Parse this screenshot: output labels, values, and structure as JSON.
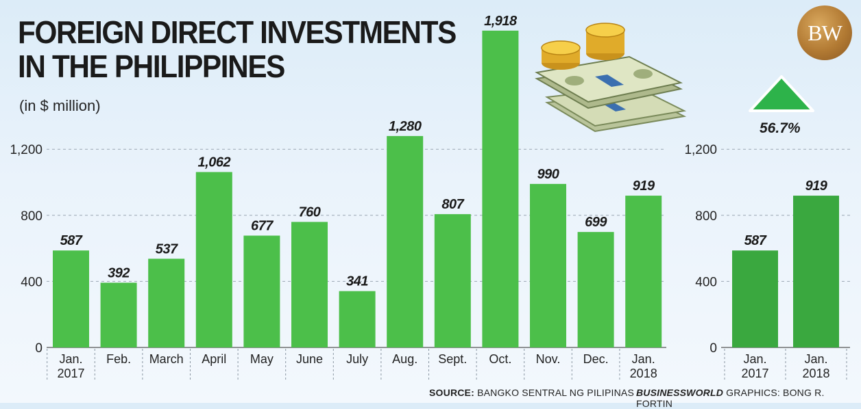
{
  "title_line1": "FOREIGN DIRECT INVESTMENTS",
  "title_line2": "IN THE PHILIPPINES",
  "subtitle": "(in $ million)",
  "logo_text": "BW",
  "change_label": "56.7%",
  "source_label": "SOURCE:",
  "source_text": "BANGKO SENTRAL NG PILIPINAS",
  "graphics_label": "BUSINESSWORLD",
  "graphics_text": "GRAPHICS: BONG R. FORTIN",
  "colors": {
    "bar": "#4cbf4a",
    "bar_dark": "#3aa83f",
    "arrow": "#2db34a"
  },
  "icons": [
    "money-stack-icon",
    "gold-coins-icon",
    "up-arrow-icon"
  ],
  "chart_data": [
    {
      "type": "bar",
      "categories": [
        [
          "Jan.",
          "2017"
        ],
        [
          "Feb."
        ],
        [
          "March"
        ],
        [
          "April"
        ],
        [
          "May"
        ],
        [
          "June"
        ],
        [
          "July"
        ],
        [
          "Aug."
        ],
        [
          "Sept."
        ],
        [
          "Oct."
        ],
        [
          "Nov."
        ],
        [
          "Dec."
        ],
        [
          "Jan.",
          "2018"
        ]
      ],
      "values": [
        587,
        392,
        537,
        1062,
        677,
        760,
        341,
        1280,
        807,
        1918,
        990,
        699,
        919
      ],
      "value_labels": [
        "587",
        "392",
        "537",
        "1,062",
        "677",
        "760",
        "341",
        "1,280",
        "807",
        "1,918",
        "990",
        "699",
        "919"
      ],
      "yticks": [
        "0",
        "400",
        "800",
        "1,200"
      ],
      "ylim": [
        0,
        2000
      ],
      "grid": true
    },
    {
      "type": "bar",
      "categories": [
        [
          "Jan.",
          "2017"
        ],
        [
          "Jan.",
          "2018"
        ]
      ],
      "values": [
        587,
        919
      ],
      "value_labels": [
        "587",
        "919"
      ],
      "yticks": [
        "0",
        "400",
        "800",
        "1,200"
      ],
      "ylim": [
        0,
        2000
      ],
      "grid": true
    }
  ]
}
